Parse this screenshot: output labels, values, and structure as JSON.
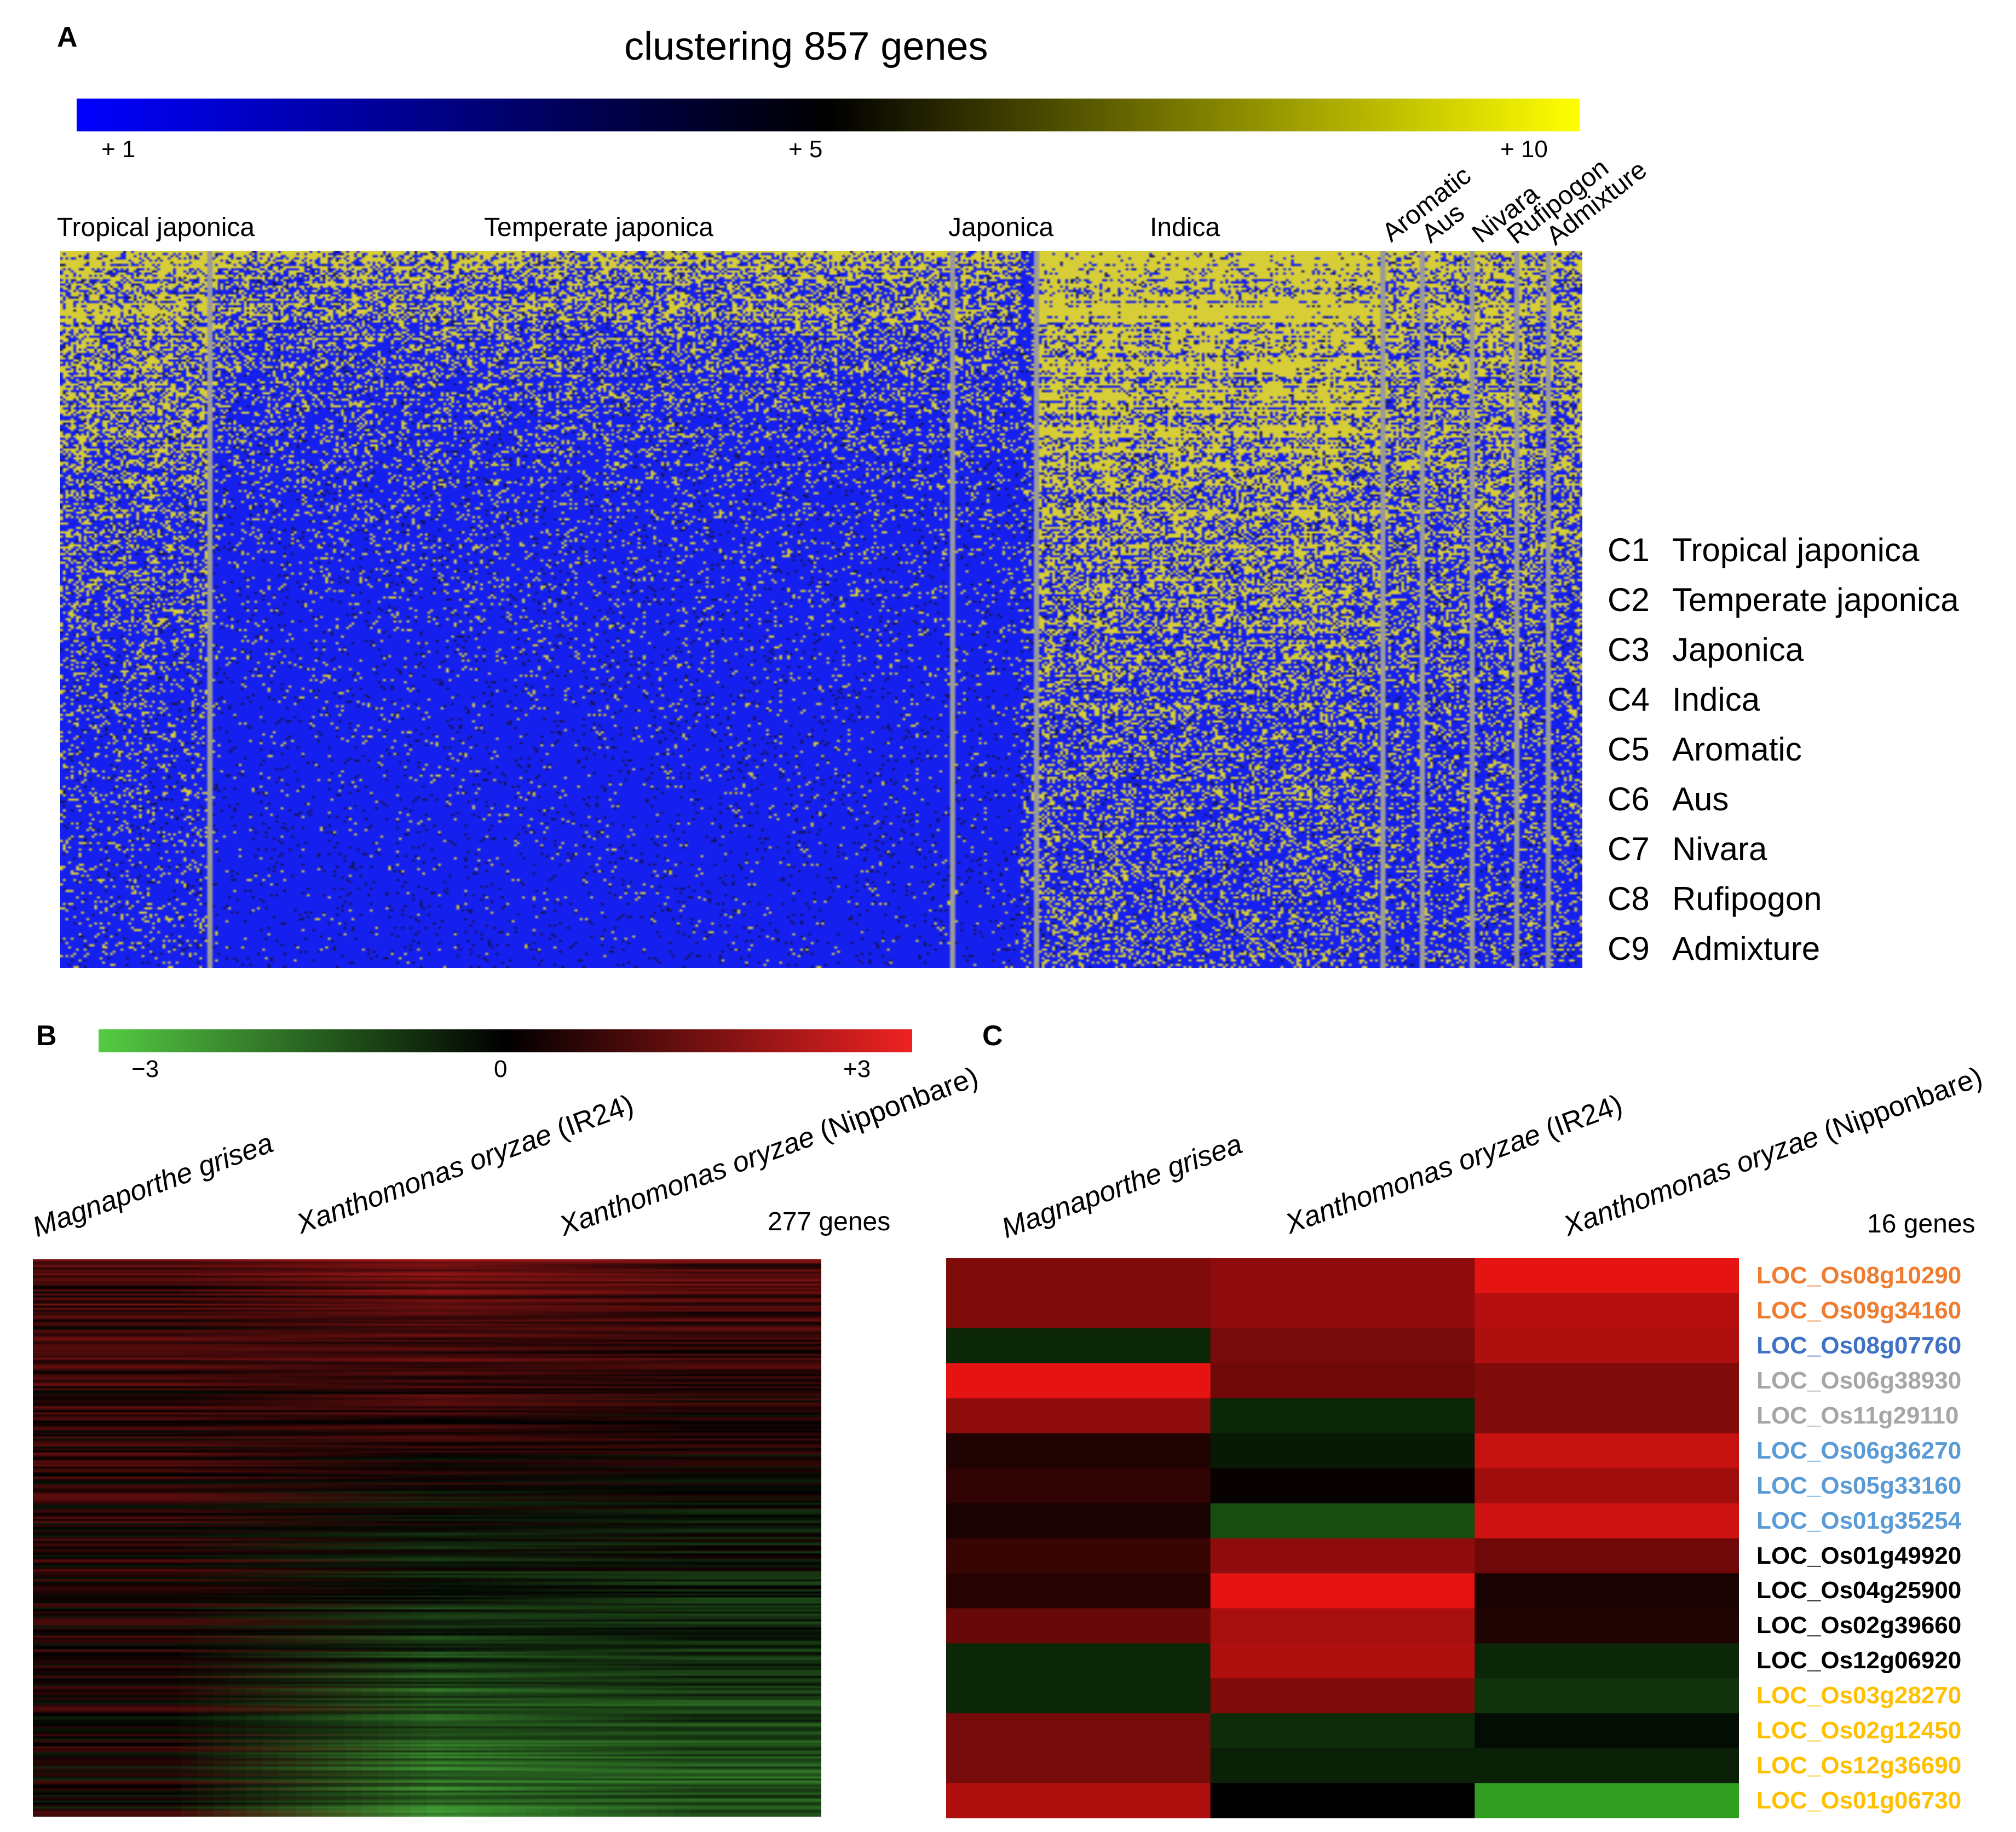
{
  "panels": {
    "A": {
      "letter": "A",
      "title": "clustering 857 genes",
      "colorbar": {
        "colors": [
          "#0000ff",
          "#000000",
          "#ffff00"
        ],
        "ticks": [
          "+ 1",
          "+ 5",
          "+ 10"
        ]
      },
      "group_labels": [
        "Tropical japonica",
        "Temperate  japonica",
        "Japonica",
        "Indica",
        "Aromatic",
        "Aus",
        "Nivara",
        "Rufipogon",
        "Admixture"
      ],
      "clusters": [
        {
          "code": "C1",
          "name": "Tropical japonica"
        },
        {
          "code": "C2",
          "name": "Temperate japonica"
        },
        {
          "code": "C3",
          "name": "Japonica"
        },
        {
          "code": "C4",
          "name": "Indica"
        },
        {
          "code": "C5",
          "name": "Aromatic"
        },
        {
          "code": "C6",
          "name": "Aus"
        },
        {
          "code": "C7",
          "name": "Nivara"
        },
        {
          "code": "C8",
          "name": "Rufipogon"
        },
        {
          "code": "C9",
          "name": "Admixture"
        }
      ]
    },
    "B": {
      "letter": "B",
      "colorbar": {
        "colors": [
          "#55cc44",
          "#000000",
          "#ee2222"
        ],
        "ticks": [
          "−3",
          "0",
          "+3"
        ]
      },
      "conditions": [
        {
          "italic": "Magnaporthe  grisea",
          "suffix": ""
        },
        {
          "italic": "Xanthomonas oryzae",
          "suffix": " (IR24)"
        },
        {
          "italic": "Xanthomonas oryzae",
          "suffix": " (Nipponbare)"
        }
      ],
      "gene_count": "277 genes"
    },
    "C": {
      "letter": "C",
      "conditions": [
        {
          "italic": "Magnaporthe  grisea",
          "suffix": ""
        },
        {
          "italic": "Xanthomonas  oryzae",
          "suffix": " (IR24)"
        },
        {
          "italic": "Xanthomonas  oryzae",
          "suffix": " (Nipponbare)"
        }
      ],
      "gene_count": "16 genes"
    }
  },
  "chart_data": [
    {
      "type": "heatmap",
      "panel": "A",
      "title": "clustering 857 genes",
      "scale": {
        "min": 1,
        "mid": 5,
        "max": 10,
        "colors": [
          "blue",
          "black",
          "yellow"
        ]
      },
      "n_genes": 857,
      "column_groups": [
        "Tropical japonica",
        "Temperate  japonica",
        "Japonica",
        "Indica",
        "Aromatic",
        "Aus",
        "Nivara",
        "Rufipogon",
        "Admixture"
      ]
    },
    {
      "type": "heatmap",
      "panel": "B",
      "scale": {
        "min": -3,
        "mid": 0,
        "max": 3,
        "colors": [
          "green",
          "black",
          "red"
        ]
      },
      "n_genes": 277,
      "columns": [
        "Magnaporthe  grisea",
        "Xanthomonas oryzae (IR24)",
        "Xanthomonas oryzae (Nipponbare)"
      ]
    },
    {
      "type": "heatmap",
      "panel": "C",
      "scale": {
        "min": -3,
        "mid": 0,
        "max": 3,
        "colors": [
          "green",
          "black",
          "red"
        ]
      },
      "columns": [
        "Magnaporthe  grisea",
        "Xanthomonas oryzae (IR24)",
        "Xanthomonas oryzae (Nipponbare)"
      ],
      "rows": [
        {
          "gene": "LOC_Os08g10290",
          "color": "#ee7d31",
          "values": [
            1.6,
            1.8,
            2.9
          ]
        },
        {
          "gene": "LOC_Os09g34160",
          "color": "#ee7d31",
          "values": [
            1.6,
            1.8,
            2.3
          ]
        },
        {
          "gene": "LOC_Os08g07760",
          "color": "#3f72c4",
          "values": [
            -0.6,
            1.5,
            2.2
          ]
        },
        {
          "gene": "LOC_Os06g38930",
          "color": "#a6a6a6",
          "values": [
            2.9,
            1.4,
            1.6
          ]
        },
        {
          "gene": "LOC_Os11g29110",
          "color": "#a6a6a6",
          "values": [
            1.8,
            -0.6,
            1.6
          ]
        },
        {
          "gene": "LOC_Os06g36270",
          "color": "#5b9bd5",
          "values": [
            0.4,
            -0.4,
            2.5
          ]
        },
        {
          "gene": "LOC_Os05g33160",
          "color": "#5b9bd5",
          "values": [
            0.6,
            0.1,
            2.0
          ]
        },
        {
          "gene": "LOC_Os01g35254",
          "color": "#5b9bd5",
          "values": [
            0.3,
            -1.2,
            2.6
          ]
        },
        {
          "gene": "LOC_Os01g49920",
          "color": "#000000",
          "values": [
            0.7,
            1.8,
            1.4
          ]
        },
        {
          "gene": "LOC_Os04g25900",
          "color": "#000000",
          "values": [
            0.5,
            2.9,
            0.3
          ]
        },
        {
          "gene": "LOC_Os02g39660",
          "color": "#000000",
          "values": [
            1.3,
            2.1,
            0.4
          ]
        },
        {
          "gene": "LOC_Os12g06920",
          "color": "#000000",
          "values": [
            -0.6,
            2.2,
            -0.6
          ]
        },
        {
          "gene": "LOC_Os03g28270",
          "color": "#ffc000",
          "values": [
            -0.6,
            1.6,
            -0.8
          ]
        },
        {
          "gene": "LOC_Os02g12450",
          "color": "#ffc000",
          "values": [
            1.5,
            -0.7,
            -0.2
          ]
        },
        {
          "gene": "LOC_Os12g36690",
          "color": "#ffc000",
          "values": [
            1.5,
            -0.5,
            -0.5
          ]
        },
        {
          "gene": "LOC_Os01g06730",
          "color": "#ffc000",
          "values": [
            2.2,
            0.0,
            -2.5
          ]
        }
      ]
    }
  ]
}
